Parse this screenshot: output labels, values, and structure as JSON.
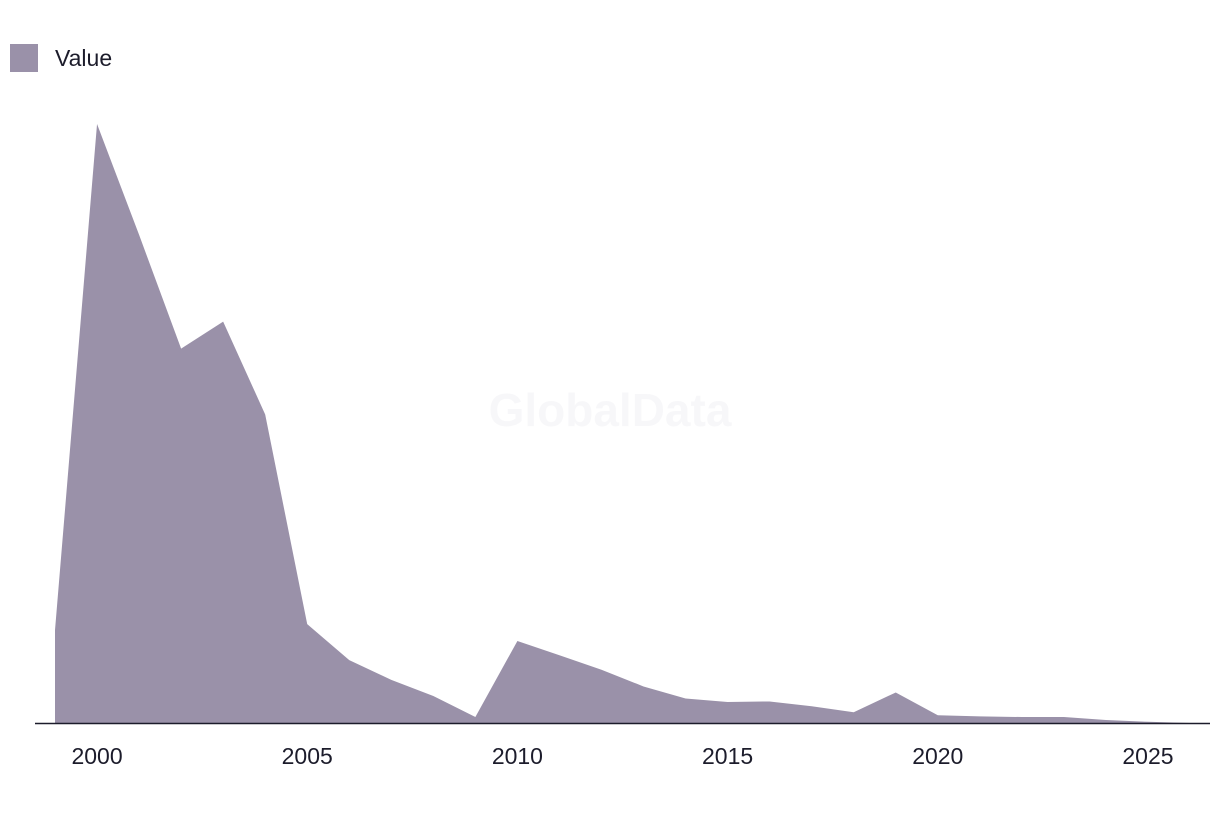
{
  "legend": {
    "label": "Value",
    "color": "#9a91a9"
  },
  "watermark": "GlobalData",
  "colors": {
    "area_fill": "#9a91a9",
    "axis": "#1c1c2b",
    "text": "#1c1c2b",
    "background": "#ffffff"
  },
  "chart_data": {
    "type": "area",
    "title": "",
    "xlabel": "",
    "ylabel": "",
    "x": [
      1999,
      2000,
      2001,
      2002,
      2003,
      2004,
      2005,
      2006,
      2007,
      2008,
      2009,
      2010,
      2011,
      2012,
      2013,
      2014,
      2015,
      2016,
      2017,
      2018,
      2019,
      2020,
      2021,
      2022,
      2023,
      2024,
      2025,
      2026
    ],
    "series": [
      {
        "name": "Value",
        "values": [
          15.5,
          100,
          81.5,
          62.5,
          67,
          51.5,
          16.5,
          10.5,
          7.2,
          4.5,
          1.0,
          13.7,
          11.3,
          8.9,
          6.1,
          4.1,
          3.5,
          3.6,
          2.8,
          1.8,
          5.1,
          1.3,
          1.1,
          1.0,
          1.0,
          0.5,
          0.2,
          0.0
        ]
      }
    ],
    "xticks": [
      "2000",
      "2005",
      "2010",
      "2015",
      "2020",
      "2025"
    ],
    "xlim": [
      1998,
      2027
    ],
    "ylim": [
      0,
      100
    ],
    "grid": false,
    "legend_position": "top-left"
  }
}
